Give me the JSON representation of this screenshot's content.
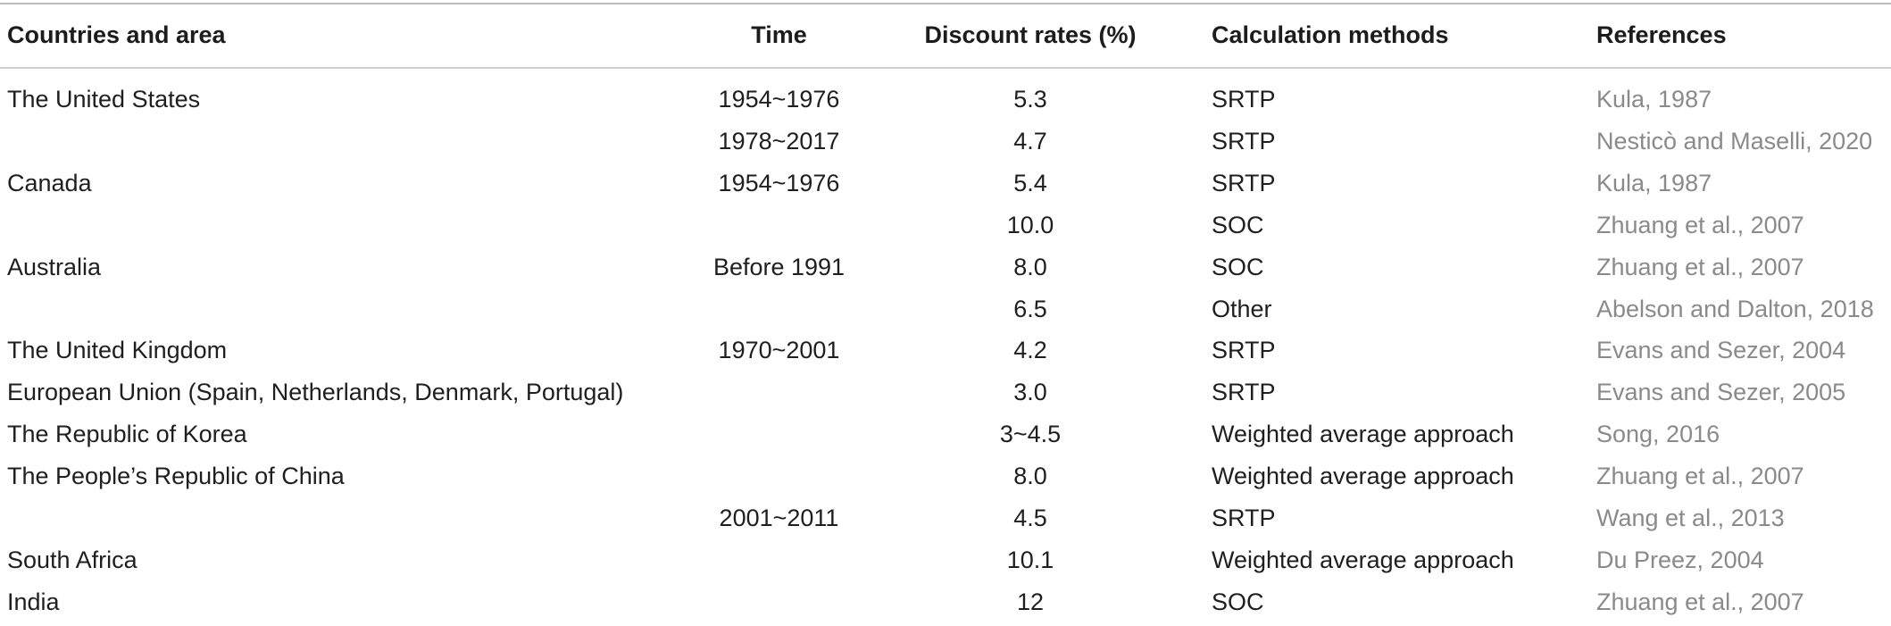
{
  "headers": {
    "country": "Countries and area",
    "time": "Time",
    "rate": "Discount rates (%)",
    "method": "Calculation methods",
    "ref": "References"
  },
  "rows": [
    {
      "country": "The United States",
      "time": "1954~1976",
      "rate": "5.3",
      "method": "SRTP",
      "ref": "Kula, 1987"
    },
    {
      "country": "",
      "time": "1978~2017",
      "rate": "4.7",
      "method": "SRTP",
      "ref": "Nesticò and Maselli, 2020"
    },
    {
      "country": "Canada",
      "time": "1954~1976",
      "rate": "5.4",
      "method": "SRTP",
      "ref": "Kula, 1987"
    },
    {
      "country": "",
      "time": "",
      "rate": "10.0",
      "method": "SOC",
      "ref": "Zhuang et al., 2007"
    },
    {
      "country": "Australia",
      "time": "Before 1991",
      "rate": "8.0",
      "method": "SOC",
      "ref": "Zhuang et al., 2007"
    },
    {
      "country": "",
      "time": "",
      "rate": "6.5",
      "method": "Other",
      "ref": "Abelson and Dalton, 2018"
    },
    {
      "country": "The United Kingdom",
      "time": "1970~2001",
      "rate": "4.2",
      "method": "SRTP",
      "ref": "Evans and Sezer, 2004"
    },
    {
      "country": "European Union (Spain, Netherlands, Denmark, Portugal)",
      "time": "",
      "rate": "3.0",
      "method": "SRTP",
      "ref": "Evans and Sezer, 2005"
    },
    {
      "country": "The Republic of Korea",
      "time": "",
      "rate": "3~4.5",
      "method": "Weighted average approach",
      "ref": "Song, 2016"
    },
    {
      "country": "The People’s Republic of China",
      "time": "",
      "rate": "8.0",
      "method": "Weighted average approach",
      "ref": "Zhuang et al., 2007"
    },
    {
      "country": "",
      "time": "2001~2011",
      "rate": "4.5",
      "method": "SRTP",
      "ref": "Wang et al., 2013"
    },
    {
      "country": "South Africa",
      "time": "",
      "rate": "10.1",
      "method": "Weighted average approach",
      "ref": "Du Preez, 2004"
    },
    {
      "country": "India",
      "time": "",
      "rate": "12",
      "method": "SOC",
      "ref": "Zhuang et al., 2007"
    }
  ]
}
